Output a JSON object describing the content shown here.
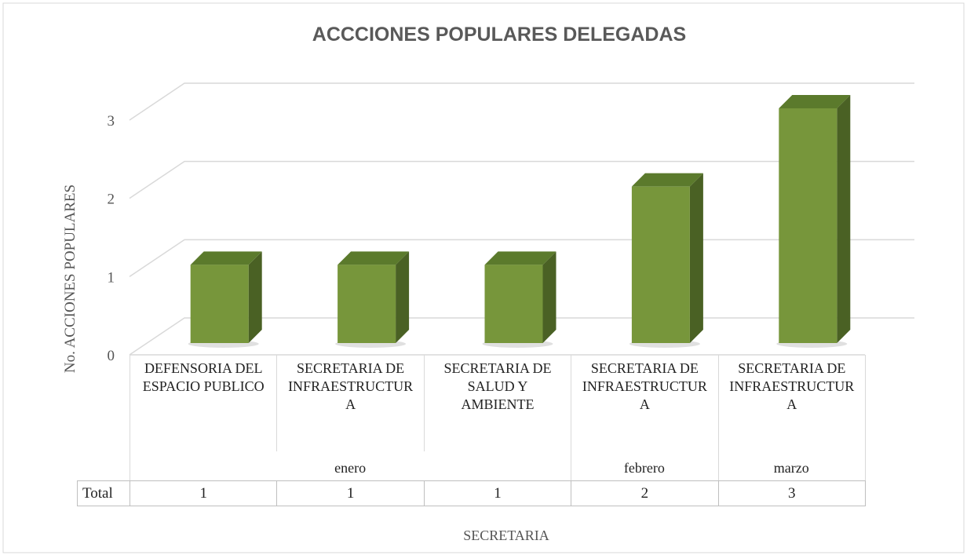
{
  "chart_data": {
    "type": "bar3d",
    "title": "ACCCIONES POPULARES DELEGADAS",
    "y_label": "No. ACCIONES POPULARES",
    "x_label": "SECRETARIA",
    "categories": [
      "DEFENSORIA DEL ESPACIO PUBLICO",
      "SECRETARIA DE INFRAESTRUCTURA",
      "SECRETARIA DE SALUD Y AMBIENTE",
      "SECRETARIA DE INFRAESTRUCTURA",
      "SECRETARIA DE INFRAESTRUCTURA"
    ],
    "groups": [
      {
        "label": "enero",
        "span": 3
      },
      {
        "label": "febrero",
        "span": 1
      },
      {
        "label": "marzo",
        "span": 1
      }
    ],
    "table_row_label": "Total",
    "values": [
      1,
      1,
      1,
      2,
      3
    ],
    "color": "#77963b",
    "ylim": [
      0,
      3
    ],
    "yticks": [
      0,
      1,
      2,
      3
    ],
    "grid": true
  }
}
